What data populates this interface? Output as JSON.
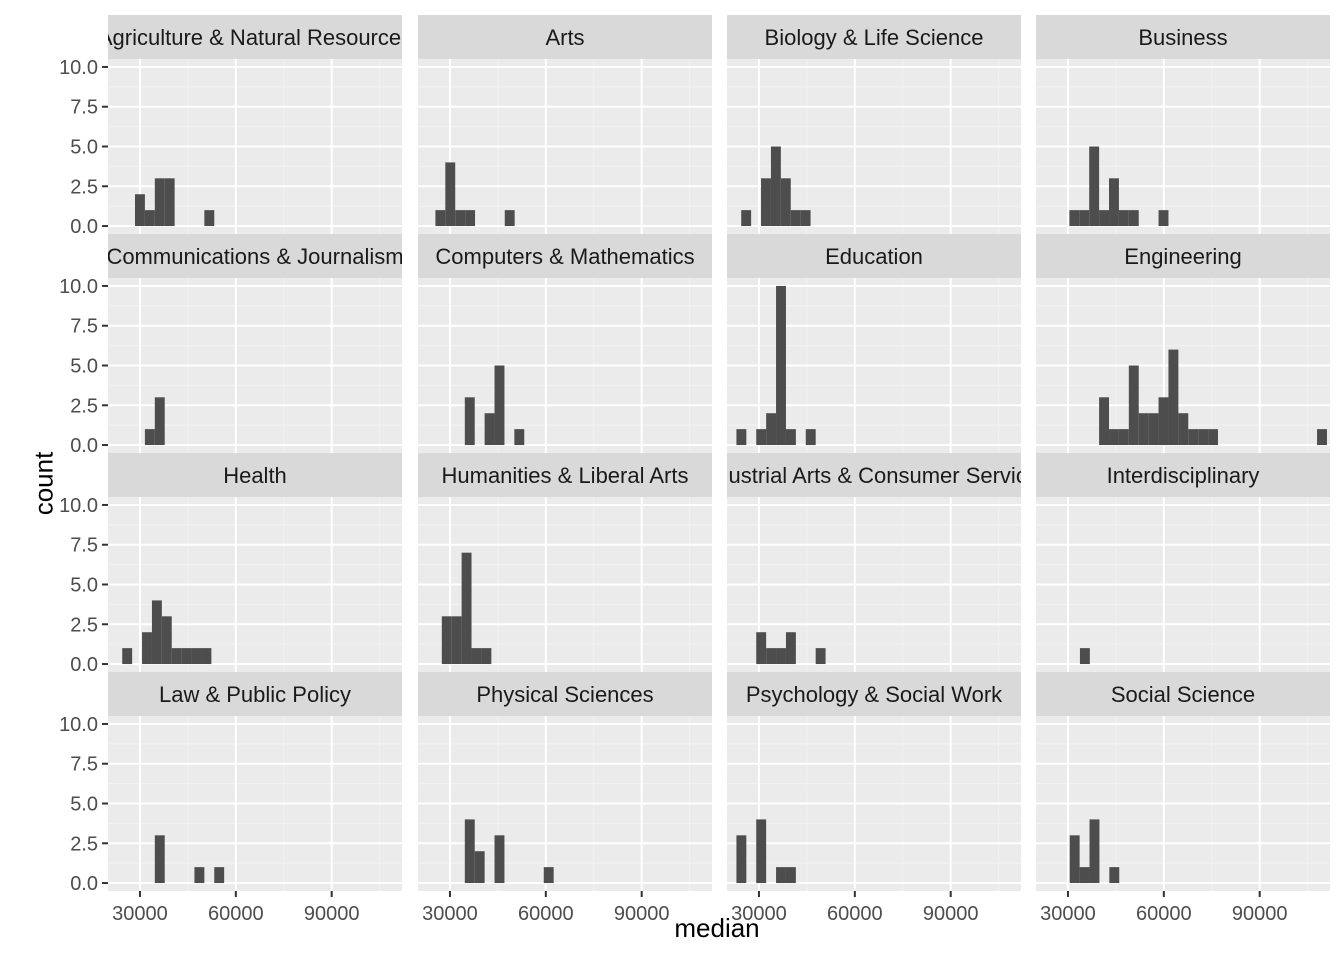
{
  "chart_data": {
    "type": "histogram-facets",
    "xlabel": "median",
    "ylabel": "count",
    "xlim": [
      20000,
      112000
    ],
    "ylim": [
      0,
      10
    ],
    "x_ticks": [
      30000,
      60000,
      90000
    ],
    "x_tick_labels": [
      "30000",
      "60000",
      "90000"
    ],
    "y_ticks": [
      0,
      2.5,
      5,
      7.5,
      10
    ],
    "y_tick_labels": [
      "0.0",
      "2.5",
      "5.0",
      "7.5",
      "10.0"
    ],
    "bin_width": 3100,
    "grid": true,
    "bar_color": "#4d4d4d",
    "panel_background": "#ebebeb",
    "strip_background": "#d9d9d9",
    "panels": [
      {
        "title": "Agriculture & Natural Resources",
        "bins": [
          {
            "x": 30000,
            "count": 2
          },
          {
            "x": 33100,
            "count": 1
          },
          {
            "x": 36200,
            "count": 3
          },
          {
            "x": 39300,
            "count": 3
          },
          {
            "x": 51700,
            "count": 1
          }
        ]
      },
      {
        "title": "Arts",
        "bins": [
          {
            "x": 27000,
            "count": 1
          },
          {
            "x": 30100,
            "count": 4
          },
          {
            "x": 33200,
            "count": 1
          },
          {
            "x": 36300,
            "count": 1
          },
          {
            "x": 48700,
            "count": 1
          }
        ]
      },
      {
        "title": "Biology & Life Science",
        "bins": [
          {
            "x": 26000,
            "count": 1
          },
          {
            "x": 32200,
            "count": 3
          },
          {
            "x": 35300,
            "count": 5
          },
          {
            "x": 38400,
            "count": 3
          },
          {
            "x": 41500,
            "count": 1
          },
          {
            "x": 44600,
            "count": 1
          }
        ]
      },
      {
        "title": "Business",
        "bins": [
          {
            "x": 32000,
            "count": 1
          },
          {
            "x": 35100,
            "count": 1
          },
          {
            "x": 38200,
            "count": 5
          },
          {
            "x": 41300,
            "count": 1
          },
          {
            "x": 44400,
            "count": 3
          },
          {
            "x": 47500,
            "count": 1
          },
          {
            "x": 50600,
            "count": 1
          },
          {
            "x": 59900,
            "count": 1
          }
        ]
      },
      {
        "title": "Communications & Journalism",
        "bins": [
          {
            "x": 33100,
            "count": 1
          },
          {
            "x": 36200,
            "count": 3
          }
        ]
      },
      {
        "title": "Computers & Mathematics",
        "bins": [
          {
            "x": 36200,
            "count": 3
          },
          {
            "x": 42400,
            "count": 2
          },
          {
            "x": 45500,
            "count": 5
          },
          {
            "x": 51700,
            "count": 1
          }
        ]
      },
      {
        "title": "Education",
        "bins": [
          {
            "x": 24500,
            "count": 1
          },
          {
            "x": 30700,
            "count": 1
          },
          {
            "x": 33800,
            "count": 2
          },
          {
            "x": 36900,
            "count": 10
          },
          {
            "x": 40000,
            "count": 1
          },
          {
            "x": 46200,
            "count": 1
          }
        ]
      },
      {
        "title": "Engineering",
        "bins": [
          {
            "x": 41300,
            "count": 3
          },
          {
            "x": 44400,
            "count": 1
          },
          {
            "x": 47500,
            "count": 1
          },
          {
            "x": 50600,
            "count": 5
          },
          {
            "x": 53700,
            "count": 2
          },
          {
            "x": 56800,
            "count": 2
          },
          {
            "x": 59900,
            "count": 3
          },
          {
            "x": 63000,
            "count": 6
          },
          {
            "x": 66100,
            "count": 2
          },
          {
            "x": 69200,
            "count": 1
          },
          {
            "x": 72300,
            "count": 1
          },
          {
            "x": 75400,
            "count": 1
          },
          {
            "x": 109500,
            "count": 1
          }
        ]
      },
      {
        "title": "Health",
        "bins": [
          {
            "x": 26000,
            "count": 1
          },
          {
            "x": 32200,
            "count": 2
          },
          {
            "x": 35300,
            "count": 4
          },
          {
            "x": 38400,
            "count": 3
          },
          {
            "x": 41500,
            "count": 1
          },
          {
            "x": 44600,
            "count": 1
          },
          {
            "x": 47700,
            "count": 1
          },
          {
            "x": 50800,
            "count": 1
          }
        ]
      },
      {
        "title": "Humanities & Liberal Arts",
        "bins": [
          {
            "x": 29000,
            "count": 3
          },
          {
            "x": 32100,
            "count": 3
          },
          {
            "x": 35200,
            "count": 7
          },
          {
            "x": 38300,
            "count": 1
          },
          {
            "x": 41400,
            "count": 1
          }
        ]
      },
      {
        "title": "Industrial Arts & Consumer Services",
        "bins": [
          {
            "x": 30700,
            "count": 2
          },
          {
            "x": 33800,
            "count": 1
          },
          {
            "x": 36900,
            "count": 1
          },
          {
            "x": 40000,
            "count": 2
          },
          {
            "x": 49300,
            "count": 1
          }
        ]
      },
      {
        "title": "Interdisciplinary",
        "bins": [
          {
            "x": 35300,
            "count": 1
          }
        ]
      },
      {
        "title": "Law & Public Policy",
        "bins": [
          {
            "x": 36200,
            "count": 3
          },
          {
            "x": 48600,
            "count": 1
          },
          {
            "x": 54800,
            "count": 1
          }
        ]
      },
      {
        "title": "Physical Sciences",
        "bins": [
          {
            "x": 36200,
            "count": 4
          },
          {
            "x": 39300,
            "count": 2
          },
          {
            "x": 45500,
            "count": 3
          },
          {
            "x": 60900,
            "count": 1
          }
        ]
      },
      {
        "title": "Psychology & Social Work",
        "bins": [
          {
            "x": 24500,
            "count": 3
          },
          {
            "x": 30700,
            "count": 4
          },
          {
            "x": 36900,
            "count": 1
          },
          {
            "x": 40000,
            "count": 1
          }
        ]
      },
      {
        "title": "Social Science",
        "bins": [
          {
            "x": 32100,
            "count": 3
          },
          {
            "x": 35200,
            "count": 1
          },
          {
            "x": 38300,
            "count": 4
          },
          {
            "x": 44500,
            "count": 1
          }
        ]
      }
    ]
  }
}
